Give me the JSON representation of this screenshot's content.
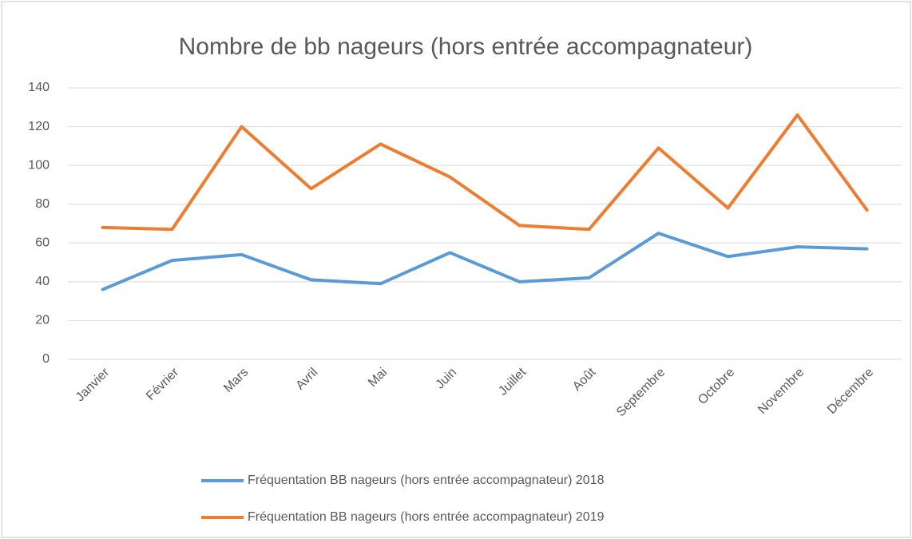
{
  "chart_data": {
    "type": "line",
    "title": "Nombre de bb nageurs (hors entrée accompagnateur)",
    "categories": [
      "Janvier",
      "Février",
      "Mars",
      "Avril",
      "Mai",
      "Juin",
      "Juillet",
      "Août",
      "Septembre",
      "Octobre",
      "Novembre",
      "Décembre"
    ],
    "series": [
      {
        "name": "Fréquentation BB nageurs (hors entrée accompagnateur) 2018",
        "color": "#5b9bd5",
        "values": [
          36,
          51,
          54,
          41,
          39,
          55,
          40,
          42,
          65,
          53,
          58,
          57
        ]
      },
      {
        "name": "Fréquentation BB nageurs (hors entrée accompagnateur) 2019",
        "color": "#ed7d31",
        "values": [
          68,
          67,
          120,
          88,
          111,
          94,
          69,
          67,
          109,
          78,
          126,
          77
        ]
      }
    ],
    "ylim": [
      0,
      140
    ],
    "yticks": [
      0,
      20,
      40,
      60,
      80,
      100,
      120,
      140
    ],
    "grid": true,
    "legend": "bottom"
  }
}
